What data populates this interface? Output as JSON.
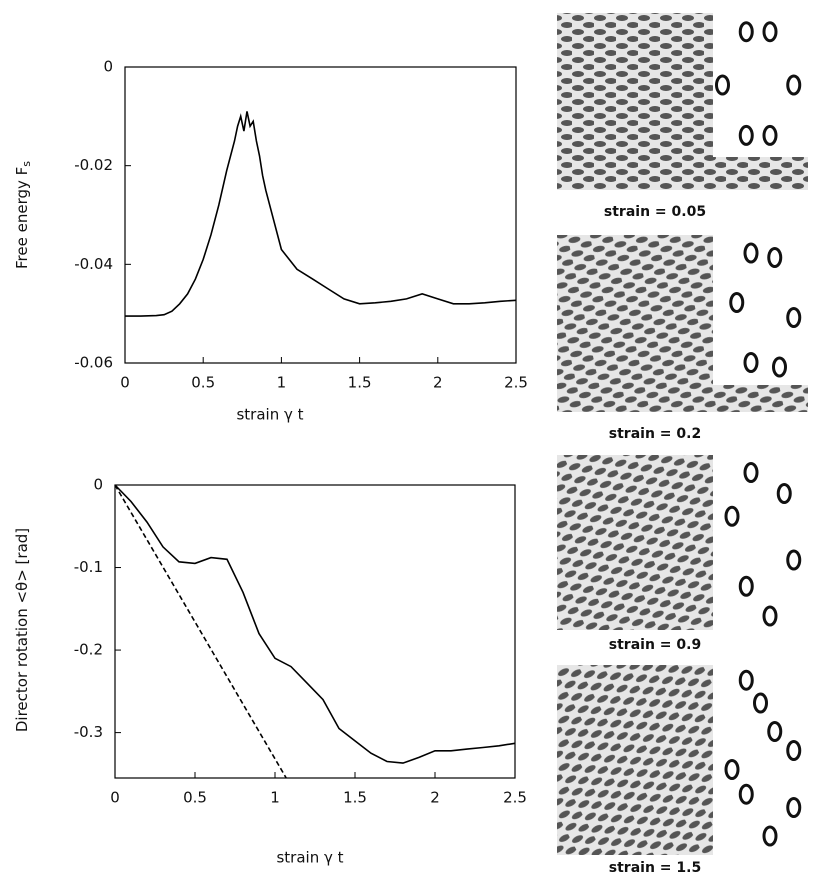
{
  "chart_data": [
    {
      "type": "line",
      "xlabel": "strain    γ t",
      "ylabel": "Free energy F",
      "ylabel_subscript": "s",
      "xlim": [
        0,
        2.5
      ],
      "ylim": [
        -0.06,
        0
      ],
      "xticks": [
        0,
        0.5,
        1,
        1.5,
        2,
        2.5
      ],
      "yticks": [
        0,
        -0.02,
        -0.04,
        -0.06
      ],
      "series": [
        {
          "color": "#000000",
          "dashed": false,
          "x": [
            0,
            0.1,
            0.2,
            0.25,
            0.3,
            0.35,
            0.4,
            0.45,
            0.5,
            0.55,
            0.6,
            0.65,
            0.7,
            0.72,
            0.74,
            0.76,
            0.78,
            0.8,
            0.82,
            0.84,
            0.86,
            0.88,
            0.9,
            0.95,
            1.0,
            1.05,
            1.1,
            1.2,
            1.3,
            1.4,
            1.5,
            1.6,
            1.7,
            1.8,
            1.9,
            2.0,
            2.1,
            2.2,
            2.3,
            2.4,
            2.5
          ],
          "values": [
            -0.0505,
            -0.0505,
            -0.0504,
            -0.0502,
            -0.0495,
            -0.048,
            -0.046,
            -0.043,
            -0.039,
            -0.034,
            -0.028,
            -0.021,
            -0.015,
            -0.012,
            -0.01,
            -0.013,
            -0.009,
            -0.012,
            -0.011,
            -0.015,
            -0.018,
            -0.022,
            -0.025,
            -0.031,
            -0.037,
            -0.039,
            -0.041,
            -0.043,
            -0.045,
            -0.047,
            -0.048,
            -0.0478,
            -0.0475,
            -0.047,
            -0.046,
            -0.047,
            -0.048,
            -0.048,
            -0.0478,
            -0.0475,
            -0.0473
          ]
        }
      ]
    },
    {
      "type": "line",
      "xlabel": "strain γ t",
      "ylabel": "Director rotation <θ>  [rad]",
      "xlim": [
        0,
        2.5
      ],
      "ylim": [
        -0.355,
        0
      ],
      "xticks": [
        0,
        0.5,
        1,
        1.5,
        2,
        2.5
      ],
      "yticks": [
        0,
        -0.1,
        -0.2,
        -0.3
      ],
      "series": [
        {
          "color": "#000000",
          "dashed": false,
          "x": [
            0,
            0.1,
            0.2,
            0.3,
            0.4,
            0.5,
            0.6,
            0.7,
            0.8,
            0.9,
            1.0,
            1.1,
            1.2,
            1.3,
            1.4,
            1.5,
            1.6,
            1.7,
            1.8,
            1.9,
            2.0,
            2.1,
            2.2,
            2.3,
            2.4,
            2.5
          ],
          "values": [
            0,
            -0.02,
            -0.045,
            -0.075,
            -0.093,
            -0.095,
            -0.088,
            -0.09,
            -0.13,
            -0.18,
            -0.21,
            -0.22,
            -0.24,
            -0.26,
            -0.295,
            -0.31,
            -0.325,
            -0.335,
            -0.337,
            -0.33,
            -0.322,
            -0.322,
            -0.32,
            -0.318,
            -0.316,
            -0.313
          ]
        },
        {
          "color": "#000000",
          "dashed": true,
          "x": [
            0,
            1.07
          ],
          "values": [
            0,
            -0.355
          ]
        }
      ]
    }
  ],
  "panels": [
    {
      "caption": "strain = 0.05"
    },
    {
      "caption": "strain = 0.2"
    },
    {
      "caption": "strain = 0.9"
    },
    {
      "caption": "strain = 1.5"
    }
  ]
}
